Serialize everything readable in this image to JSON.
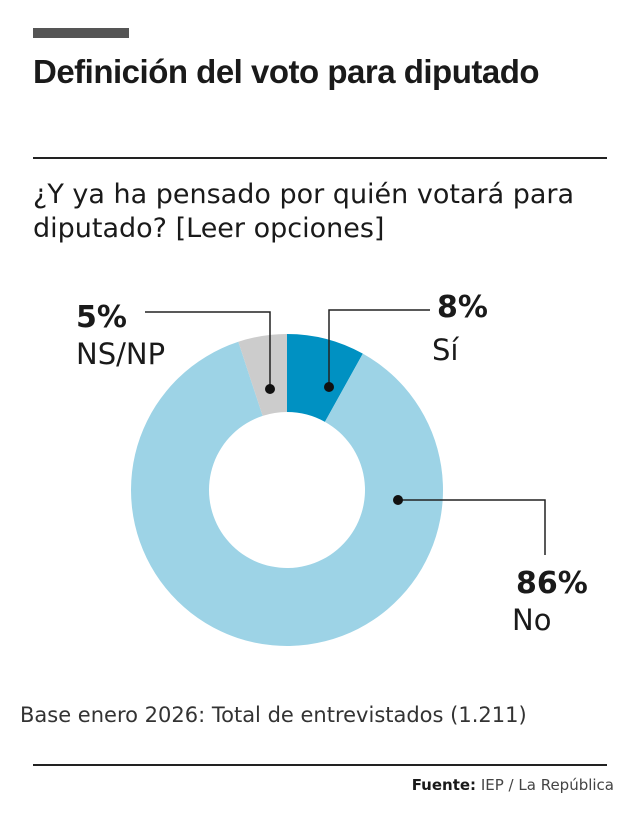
{
  "title": "Definición del voto para diputado",
  "subtitle": "¿Y ya ha pensado por quién votará para diputado? [Leer opciones]",
  "note": "Base enero 2026: Total de entrevistados (1.211)",
  "source": {
    "label": "Fuente:",
    "value": "IEP / La República"
  },
  "chart_data": {
    "type": "pie",
    "donut": true,
    "categories": [
      "Sí",
      "No",
      "NS/NP"
    ],
    "values": [
      8,
      86,
      5
    ],
    "labels": [
      "8%",
      "86%",
      "5%"
    ],
    "colors": [
      "#0091c2",
      "#9dd3e6",
      "#cccccc"
    ],
    "start": "top, clockwise"
  }
}
